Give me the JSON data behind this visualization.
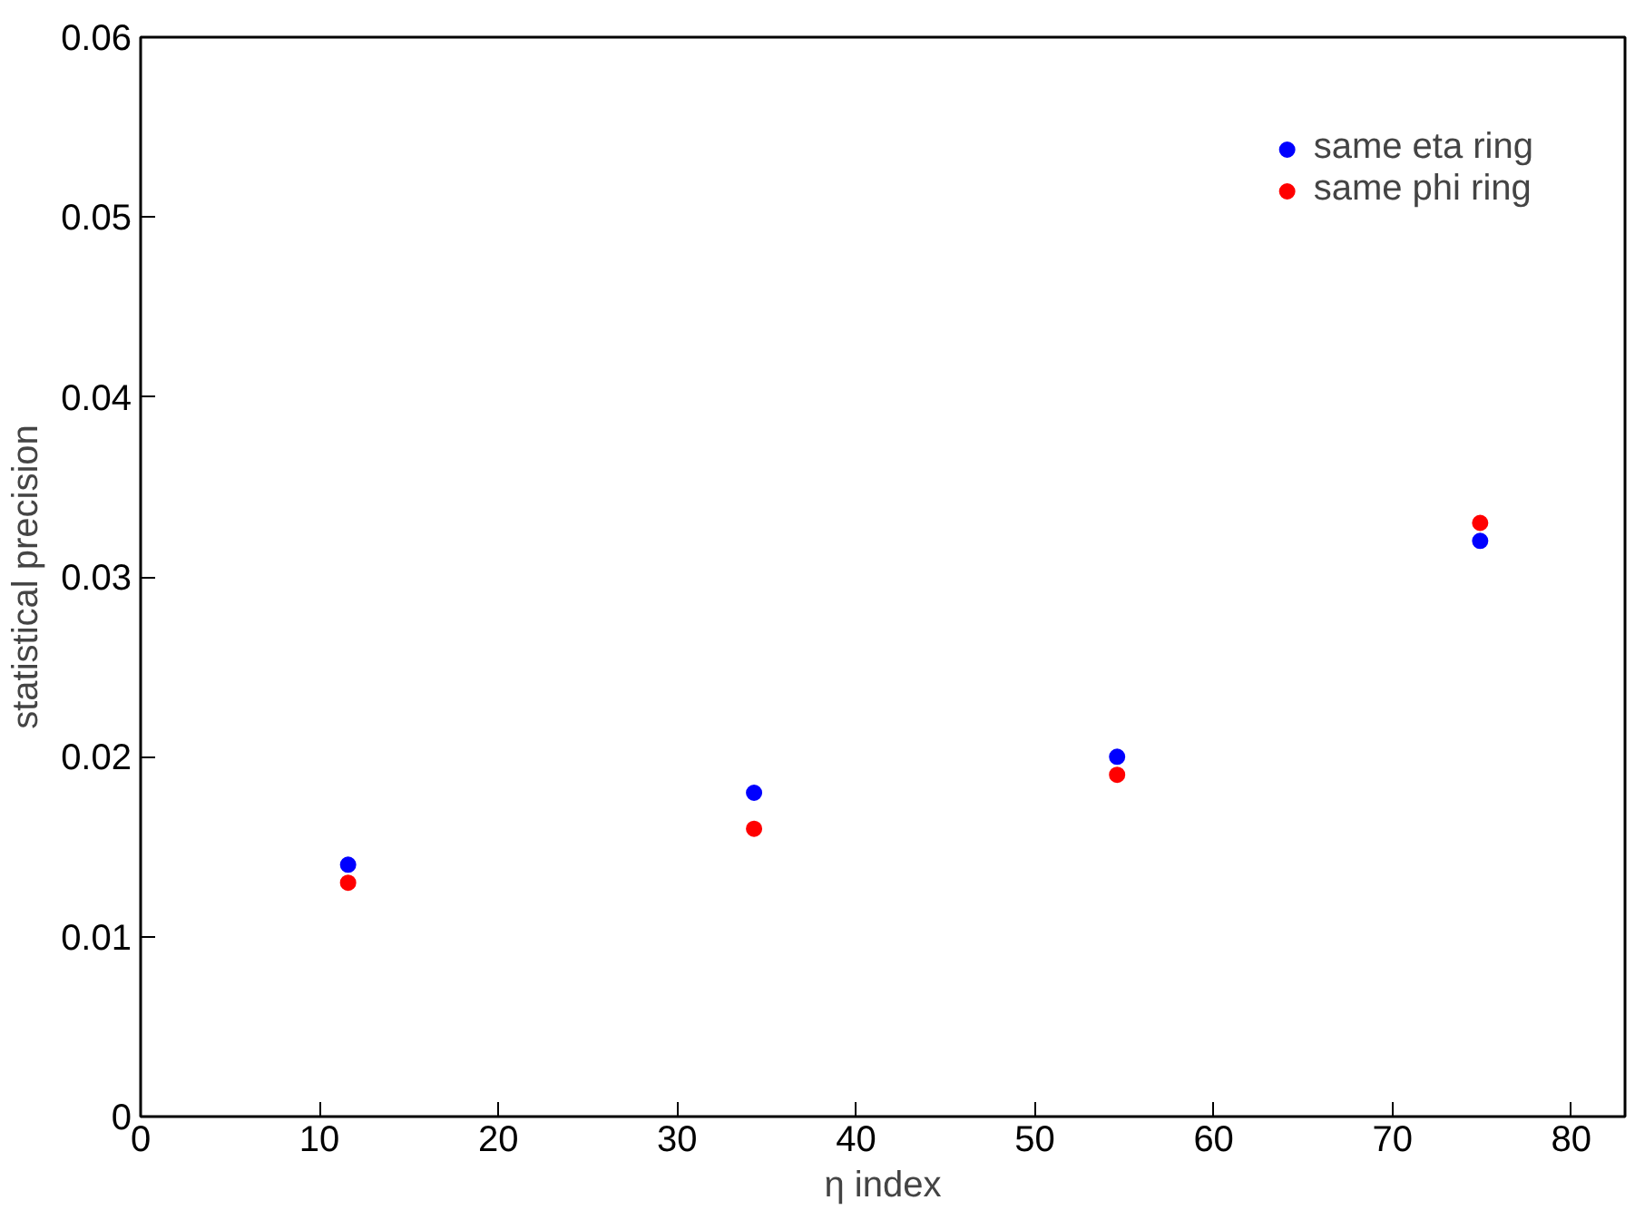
{
  "chart_data": {
    "type": "scatter",
    "xlabel": "η index",
    "ylabel": "statistical precision",
    "xlim": [
      0,
      83
    ],
    "xticks": [
      0,
      10,
      20,
      30,
      40,
      50,
      60,
      70,
      80
    ],
    "ylim": [
      0,
      0.06
    ],
    "yticks": [
      0,
      0.01,
      0.02,
      0.03,
      0.04,
      0.05,
      0.06
    ],
    "x": [
      11.6,
      34.3,
      54.6,
      74.9
    ],
    "series": [
      {
        "name": "same eta ring",
        "color": "#0000ff",
        "values": [
          0.014,
          0.018,
          0.02,
          0.032
        ]
      },
      {
        "name": "same phi ring",
        "color": "#ff0000",
        "values": [
          0.013,
          0.016,
          0.019,
          0.033
        ]
      }
    ],
    "marker": "circle",
    "grid": false,
    "legend": "top right"
  }
}
